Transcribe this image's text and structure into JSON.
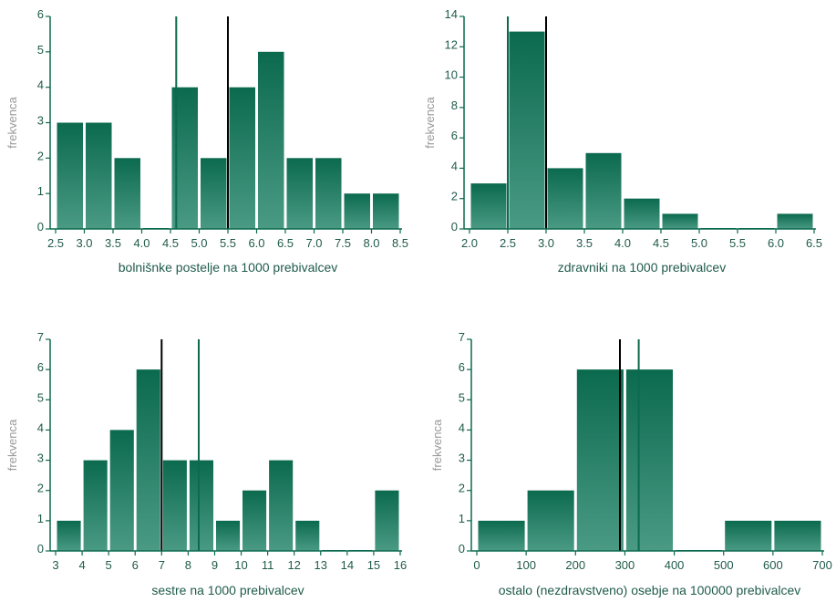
{
  "colors": {
    "bar_top": "#0b6a4e",
    "bar_bottom": "#4a9a84",
    "axis": "#0b6a4e",
    "text": "#1f5b4a",
    "ylabel": "#9a9a9a"
  },
  "chart_data": [
    {
      "type": "bar",
      "xlabel": "bolnišnke postelje na 1000 prebivalcev",
      "ylabel": "frekvenca",
      "xlim": [
        2.5,
        8.5
      ],
      "ylim": [
        0,
        6
      ],
      "x_ticks": [
        "2.5",
        "3.0",
        "3.5",
        "4.0",
        "4.5",
        "5.0",
        "5.5",
        "6.0",
        "6.5",
        "7.0",
        "7.5",
        "8.0",
        "8.5"
      ],
      "y_ticks": [
        "0",
        "1",
        "2",
        "3",
        "4",
        "5",
        "6"
      ],
      "bins": [
        {
          "from": 2.5,
          "to": 3.0,
          "value": 3
        },
        {
          "from": 3.0,
          "to": 3.5,
          "value": 3
        },
        {
          "from": 3.5,
          "to": 4.0,
          "value": 2
        },
        {
          "from": 4.0,
          "to": 4.5,
          "value": 0
        },
        {
          "from": 4.5,
          "to": 5.0,
          "value": 4
        },
        {
          "from": 5.0,
          "to": 5.5,
          "value": 2
        },
        {
          "from": 5.5,
          "to": 6.0,
          "value": 4
        },
        {
          "from": 6.0,
          "to": 6.5,
          "value": 5
        },
        {
          "from": 6.5,
          "to": 7.0,
          "value": 2
        },
        {
          "from": 7.0,
          "to": 7.5,
          "value": 2
        },
        {
          "from": 7.5,
          "to": 8.0,
          "value": 1
        },
        {
          "from": 8.0,
          "to": 8.5,
          "value": 1
        }
      ],
      "reference_lines": [
        {
          "x": 4.6,
          "color": "#0b6a4e"
        },
        {
          "x": 5.5,
          "color": "#000000"
        }
      ]
    },
    {
      "type": "bar",
      "xlabel": "zdravniki na 1000 prebivalcev",
      "ylabel": "frekvenca",
      "xlim": [
        2.0,
        6.5
      ],
      "ylim": [
        0,
        14
      ],
      "x_ticks": [
        "2.0",
        "2.5",
        "3.0",
        "3.5",
        "4.0",
        "4.5",
        "5.0",
        "5.5",
        "6.0",
        "6.5"
      ],
      "y_ticks": [
        "0",
        "2",
        "4",
        "6",
        "8",
        "10",
        "12",
        "14"
      ],
      "bins": [
        {
          "from": 2.0,
          "to": 2.5,
          "value": 3
        },
        {
          "from": 2.5,
          "to": 3.0,
          "value": 13
        },
        {
          "from": 3.0,
          "to": 3.5,
          "value": 4
        },
        {
          "from": 3.5,
          "to": 4.0,
          "value": 5
        },
        {
          "from": 4.0,
          "to": 4.5,
          "value": 2
        },
        {
          "from": 4.5,
          "to": 5.0,
          "value": 1
        },
        {
          "from": 5.0,
          "to": 5.5,
          "value": 0
        },
        {
          "from": 5.5,
          "to": 6.0,
          "value": 0
        },
        {
          "from": 6.0,
          "to": 6.5,
          "value": 1
        }
      ],
      "reference_lines": [
        {
          "x": 2.5,
          "color": "#0b6a4e"
        },
        {
          "x": 3.0,
          "color": "#000000"
        }
      ]
    },
    {
      "type": "bar",
      "xlabel": "sestre na 1000 prebivalcev",
      "ylabel": "frekvenca",
      "xlim": [
        3,
        16
      ],
      "ylim": [
        0,
        7
      ],
      "x_ticks": [
        "3",
        "4",
        "5",
        "6",
        "7",
        "8",
        "9",
        "10",
        "11",
        "12",
        "13",
        "14",
        "15",
        "16"
      ],
      "y_ticks": [
        "0",
        "1",
        "2",
        "3",
        "4",
        "5",
        "6",
        "7"
      ],
      "bins": [
        {
          "from": 3,
          "to": 4,
          "value": 1
        },
        {
          "from": 4,
          "to": 5,
          "value": 3
        },
        {
          "from": 5,
          "to": 6,
          "value": 4
        },
        {
          "from": 6,
          "to": 7,
          "value": 6
        },
        {
          "from": 7,
          "to": 8,
          "value": 3
        },
        {
          "from": 8,
          "to": 9,
          "value": 3
        },
        {
          "from": 9,
          "to": 10,
          "value": 1
        },
        {
          "from": 10,
          "to": 11,
          "value": 2
        },
        {
          "from": 11,
          "to": 12,
          "value": 3
        },
        {
          "from": 12,
          "to": 13,
          "value": 1
        },
        {
          "from": 13,
          "to": 14,
          "value": 0
        },
        {
          "from": 14,
          "to": 15,
          "value": 0
        },
        {
          "from": 15,
          "to": 16,
          "value": 2
        }
      ],
      "reference_lines": [
        {
          "x": 7.0,
          "color": "#000000"
        },
        {
          "x": 8.4,
          "color": "#0b6a4e"
        }
      ]
    },
    {
      "type": "bar",
      "xlabel": "ostalo (nezdravstveno) osebje na 100000 prebivalcev",
      "ylabel": "frekvenca",
      "xlim": [
        0,
        700
      ],
      "ylim": [
        0,
        7
      ],
      "x_ticks": [
        "0",
        "100",
        "200",
        "300",
        "400",
        "500",
        "600",
        "700"
      ],
      "y_ticks": [
        "0",
        "1",
        "2",
        "3",
        "4",
        "5",
        "6",
        "7"
      ],
      "bins": [
        {
          "from": 0,
          "to": 100,
          "value": 1
        },
        {
          "from": 100,
          "to": 200,
          "value": 2
        },
        {
          "from": 200,
          "to": 300,
          "value": 6
        },
        {
          "from": 300,
          "to": 400,
          "value": 6
        },
        {
          "from": 400,
          "to": 500,
          "value": 0
        },
        {
          "from": 500,
          "to": 600,
          "value": 1
        },
        {
          "from": 600,
          "to": 700,
          "value": 1
        }
      ],
      "reference_lines": [
        {
          "x": 290,
          "color": "#000000"
        },
        {
          "x": 328,
          "color": "#0b6a4e"
        }
      ]
    }
  ]
}
